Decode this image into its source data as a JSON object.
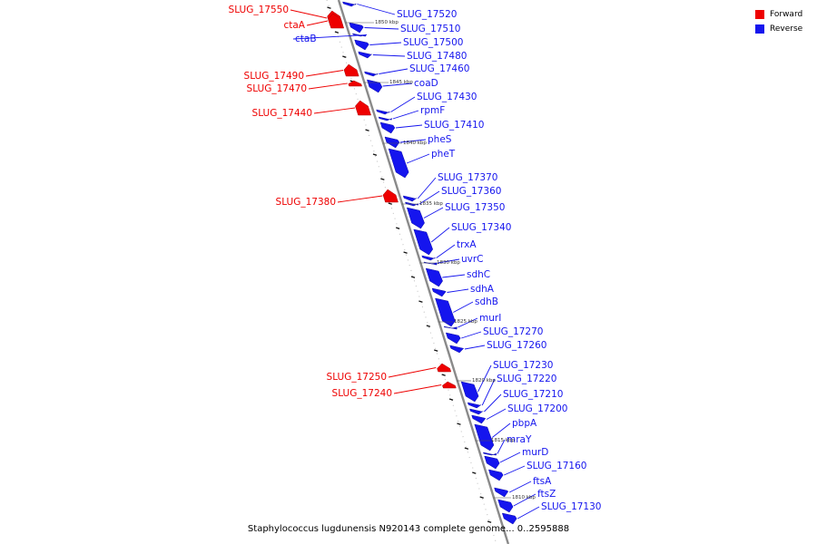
{
  "colors": {
    "forward": "#ee0000",
    "reverse": "#1515ee",
    "axis": "#8a8a8a"
  },
  "legend": {
    "forward_label": "Forward",
    "reverse_label": "Reverse"
  },
  "caption": "Staphylococcus lugdunensis N920143 complete genome... 0..2595888",
  "genes": [
    {
      "name": "SLUG_17550",
      "strand": "forward"
    },
    {
      "name": "ctaA",
      "strand": "forward"
    },
    {
      "name": "ctaB",
      "strand": "reverse"
    },
    {
      "name": "SLUG_17520",
      "strand": "reverse"
    },
    {
      "name": "SLUG_17510",
      "strand": "reverse"
    },
    {
      "name": "SLUG_17500",
      "strand": "reverse"
    },
    {
      "name": "SLUG_17480",
      "strand": "reverse"
    },
    {
      "name": "SLUG_17460",
      "strand": "reverse"
    },
    {
      "name": "SLUG_17490",
      "strand": "forward"
    },
    {
      "name": "SLUG_17470",
      "strand": "forward"
    },
    {
      "name": "coaD",
      "strand": "reverse"
    },
    {
      "name": "SLUG_17430",
      "strand": "reverse"
    },
    {
      "name": "SLUG_17440",
      "strand": "forward"
    },
    {
      "name": "rpmF",
      "strand": "reverse"
    },
    {
      "name": "SLUG_17410",
      "strand": "reverse"
    },
    {
      "name": "pheS",
      "strand": "reverse"
    },
    {
      "name": "pheT",
      "strand": "reverse"
    },
    {
      "name": "SLUG_17370",
      "strand": "reverse"
    },
    {
      "name": "SLUG_17360",
      "strand": "reverse"
    },
    {
      "name": "SLUG_17380",
      "strand": "forward"
    },
    {
      "name": "SLUG_17350",
      "strand": "reverse"
    },
    {
      "name": "SLUG_17340",
      "strand": "reverse"
    },
    {
      "name": "trxA",
      "strand": "reverse"
    },
    {
      "name": "uvrC",
      "strand": "reverse"
    },
    {
      "name": "sdhC",
      "strand": "reverse"
    },
    {
      "name": "sdhA",
      "strand": "reverse"
    },
    {
      "name": "sdhB",
      "strand": "reverse"
    },
    {
      "name": "murI",
      "strand": "reverse"
    },
    {
      "name": "SLUG_17270",
      "strand": "reverse"
    },
    {
      "name": "SLUG_17260",
      "strand": "reverse"
    },
    {
      "name": "SLUG_17230",
      "strand": "reverse"
    },
    {
      "name": "SLUG_17250",
      "strand": "forward"
    },
    {
      "name": "SLUG_17220",
      "strand": "reverse"
    },
    {
      "name": "SLUG_17240",
      "strand": "forward"
    },
    {
      "name": "SLUG_17210",
      "strand": "reverse"
    },
    {
      "name": "SLUG_17200",
      "strand": "reverse"
    },
    {
      "name": "pbpA",
      "strand": "reverse"
    },
    {
      "name": "mraY",
      "strand": "reverse"
    },
    {
      "name": "murD",
      "strand": "reverse"
    },
    {
      "name": "SLUG_17160",
      "strand": "reverse"
    },
    {
      "name": "ftsA",
      "strand": "reverse"
    },
    {
      "name": "ftsZ",
      "strand": "reverse"
    },
    {
      "name": "SLUG_17130",
      "strand": "reverse"
    }
  ],
  "position_labels": [
    "1850 kbp",
    "1845 kbp",
    "1840 kbp",
    "1835 kbp",
    "1830 kbp",
    "1825 kbp",
    "1820 kbp",
    "1815 kbp",
    "1810 kbp"
  ]
}
